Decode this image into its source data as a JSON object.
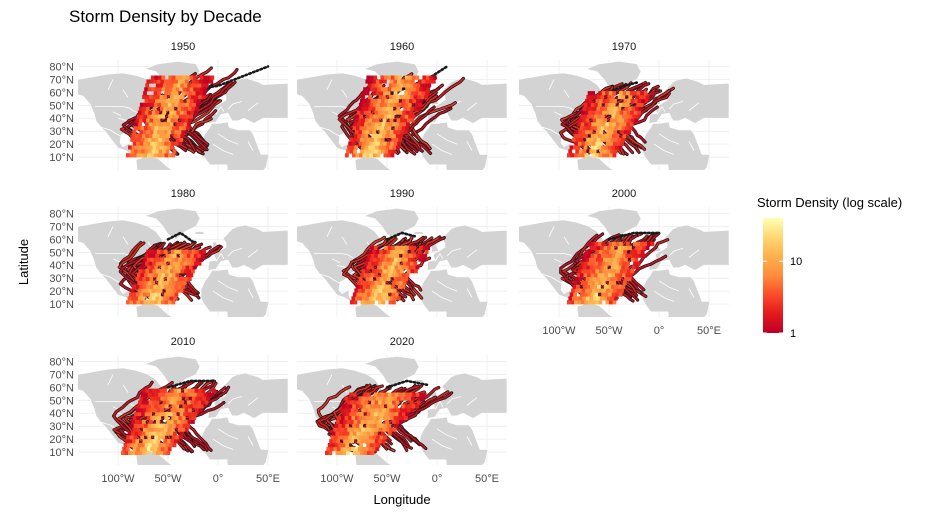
{
  "chart_data": {
    "type": "heatmap",
    "title": "Storm Density by Decade",
    "xlabel": "Longitude",
    "ylabel": "Latitude",
    "xlim": [
      -140,
      70
    ],
    "ylim": [
      0,
      85
    ],
    "x_ticks": [
      -100,
      -50,
      0,
      50
    ],
    "x_tick_labels": [
      "100°W",
      "50°W",
      "0°",
      "50°E"
    ],
    "y_ticks": [
      10,
      20,
      30,
      40,
      50,
      60,
      70,
      80
    ],
    "y_tick_labels": [
      "10°N",
      "20°N",
      "30°N",
      "40°N",
      "50°N",
      "60°N",
      "70°N",
      "80°N"
    ],
    "grid": true,
    "facet_by": "decade",
    "panels": [
      {
        "label": "1950",
        "lon_range": [
          -100,
          -15
        ],
        "lat_range": [
          10,
          80
        ],
        "max_lon": 50
      },
      {
        "label": "1960",
        "lon_range": [
          -100,
          -10
        ],
        "lat_range": [
          10,
          80
        ],
        "max_lon": 10
      },
      {
        "label": "1970",
        "lon_range": [
          -100,
          -15
        ],
        "lat_range": [
          10,
          68
        ],
        "max_lon": -20
      },
      {
        "label": "1980",
        "lon_range": [
          -100,
          -20
        ],
        "lat_range": [
          10,
          58
        ],
        "max_lon": -25
      },
      {
        "label": "1990",
        "lon_range": [
          -95,
          -15
        ],
        "lat_range": [
          10,
          62
        ],
        "max_lon": -20
      },
      {
        "label": "2000",
        "lon_range": [
          -100,
          -15
        ],
        "lat_range": [
          10,
          65
        ],
        "max_lon": 0
      },
      {
        "label": "2010",
        "lon_range": [
          -105,
          -10
        ],
        "lat_range": [
          8,
          65
        ],
        "max_lon": -5
      },
      {
        "label": "2020",
        "lon_range": [
          -120,
          -15
        ],
        "lat_range": [
          8,
          62
        ],
        "max_lon": -10
      }
    ],
    "legend": {
      "title": "Storm Density (log scale)",
      "position": "right",
      "scale": "log",
      "range": [
        1,
        40
      ],
      "breaks": [
        1,
        10
      ],
      "break_labels": [
        "1",
        "10"
      ],
      "colors": [
        "#bd0026",
        "#e31a1c",
        "#fc4e2a",
        "#fd8d3c",
        "#feb24c",
        "#fed976",
        "#ffffb2"
      ]
    },
    "colors": {
      "land": "#d3d3d3",
      "border": "#ffffff",
      "track_outline": "#1a1a1a",
      "grid": "#ebebeb"
    }
  }
}
